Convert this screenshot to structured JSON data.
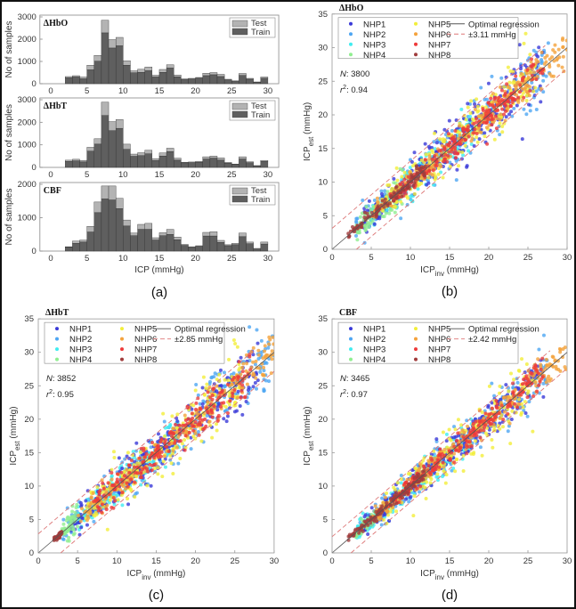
{
  "chart_data": [
    {
      "type": "bar",
      "panel": "(a)",
      "subtitle": "ΔHbO",
      "stacked": true,
      "bin_start": [
        2,
        3,
        4,
        5,
        6,
        7,
        8,
        9,
        10,
        11,
        12,
        13,
        14,
        15,
        16,
        17,
        18,
        19,
        20,
        21,
        22,
        23,
        24,
        25,
        26,
        27,
        28,
        29
      ],
      "series": [
        {
          "name": "Train",
          "color": "#5f5f5f",
          "values": [
            260,
            300,
            220,
            620,
            1010,
            2280,
            1600,
            1700,
            830,
            490,
            510,
            580,
            300,
            510,
            700,
            310,
            180,
            210,
            250,
            360,
            400,
            320,
            170,
            100,
            370,
            200,
            60,
            240
          ]
        },
        {
          "name": "Test",
          "color": "#b3b3b3",
          "values": [
            60,
            60,
            80,
            210,
            260,
            570,
            380,
            380,
            200,
            90,
            140,
            170,
            80,
            130,
            150,
            80,
            40,
            30,
            30,
            110,
            100,
            100,
            30,
            30,
            90,
            40,
            20,
            60
          ]
        }
      ],
      "xlabel": "",
      "ylabel": "No of samples",
      "xlim": [
        -1.5,
        31.5
      ],
      "ylim": [
        0,
        3000
      ],
      "xticks": [
        "0",
        "5",
        "10",
        "15",
        "20",
        "25",
        "30"
      ],
      "yticks": [
        "0",
        "1000",
        "2000",
        "3000"
      ],
      "legend": "top-right"
    },
    {
      "type": "bar",
      "panel": "(a)",
      "subtitle": "ΔHbT",
      "stacked": true,
      "bin_start": [
        2,
        3,
        4,
        5,
        6,
        7,
        8,
        9,
        10,
        11,
        12,
        13,
        14,
        15,
        16,
        17,
        18,
        19,
        20,
        21,
        22,
        23,
        24,
        25,
        26,
        27,
        28,
        29
      ],
      "series": [
        {
          "name": "Train",
          "color": "#5f5f5f",
          "values": [
            260,
            290,
            240,
            720,
            1030,
            2300,
            1630,
            1730,
            800,
            490,
            520,
            600,
            300,
            500,
            700,
            320,
            200,
            210,
            230,
            370,
            410,
            320,
            190,
            130,
            370,
            210,
            60,
            260
          ]
        },
        {
          "name": "Test",
          "color": "#b3b3b3",
          "values": [
            60,
            70,
            70,
            170,
            240,
            590,
            400,
            390,
            230,
            100,
            130,
            160,
            90,
            140,
            150,
            90,
            30,
            30,
            40,
            100,
            90,
            100,
            30,
            20,
            100,
            40,
            20,
            50
          ]
        }
      ],
      "xlabel": "",
      "ylabel": "No of samples",
      "xlim": [
        -1.5,
        31.5
      ],
      "ylim": [
        0,
        3000
      ],
      "xticks": [
        "0",
        "5",
        "10",
        "15",
        "20",
        "25",
        "30"
      ],
      "yticks": [
        "0",
        "1000",
        "2000",
        "3000"
      ],
      "legend": "top-right"
    },
    {
      "type": "bar",
      "panel": "(a)",
      "subtitle": "CBF",
      "stacked": true,
      "bin_start": [
        2,
        3,
        4,
        5,
        6,
        7,
        8,
        9,
        10,
        11,
        12,
        13,
        14,
        15,
        16,
        17,
        18,
        19,
        20,
        21,
        22,
        23,
        24,
        25,
        26,
        27,
        28,
        29
      ],
      "series": [
        {
          "name": "Train",
          "color": "#5f5f5f",
          "values": [
            120,
            230,
            270,
            570,
            1150,
            1560,
            1530,
            1270,
            750,
            460,
            650,
            650,
            330,
            460,
            500,
            340,
            170,
            110,
            140,
            450,
            450,
            260,
            160,
            190,
            430,
            220,
            60,
            210
          ]
        },
        {
          "name": "Test",
          "color": "#b3b3b3",
          "values": [
            10,
            70,
            60,
            170,
            320,
            390,
            420,
            310,
            180,
            80,
            150,
            180,
            70,
            90,
            150,
            80,
            30,
            20,
            20,
            110,
            130,
            60,
            30,
            40,
            110,
            50,
            20,
            60
          ]
        }
      ],
      "xlabel": "ICP (mmHg)",
      "ylabel": "No of samples",
      "xlim": [
        -1.5,
        31.5
      ],
      "ylim": [
        0,
        2000
      ],
      "xticks": [
        "0",
        "5",
        "10",
        "15",
        "20",
        "25",
        "30"
      ],
      "yticks": [
        "0",
        "1000",
        "2000"
      ],
      "legend": "top-right"
    },
    {
      "type": "scatter",
      "panel": "(b)",
      "subtitle": "ΔHbO",
      "xlabel_main": "ICP",
      "xlabel_sub": "inv",
      "xlabel_unit": " (mmHg)",
      "ylabel_main": "ICP",
      "ylabel_sub": "est",
      "ylabel_unit": " (mmHg)",
      "xlim": [
        0,
        30
      ],
      "ylim": [
        0,
        35
      ],
      "xticks": [
        "0",
        "5",
        "10",
        "15",
        "20",
        "25",
        "30"
      ],
      "yticks": [
        "0",
        "5",
        "10",
        "15",
        "20",
        "25",
        "30",
        "35"
      ],
      "N_label": "N",
      "N": "3800",
      "r2_label": "r",
      "r2": "0.94",
      "band": 3.11,
      "band_label": "±3.11 mmHg",
      "line_label": "Optimal regression",
      "legend": "top-left",
      "series_summary": [
        {
          "name": "NHP1",
          "color": "#3a3ad8",
          "x_range": [
            4,
            27
          ],
          "spread": 1.8
        },
        {
          "name": "NHP2",
          "color": "#4ea6f2",
          "x_range": [
            3,
            28
          ],
          "spread": 1.9
        },
        {
          "name": "NHP3",
          "color": "#40ecf0",
          "x_range": [
            5,
            18
          ],
          "spread": 1.5
        },
        {
          "name": "NHP4",
          "color": "#90ee90",
          "x_range": [
            3,
            9
          ],
          "spread": 1.6
        },
        {
          "name": "NHP5",
          "color": "#f2ee3a",
          "x_range": [
            6,
            26
          ],
          "spread": 1.8
        },
        {
          "name": "NHP6",
          "color": "#f4a23c",
          "x_range": [
            5,
            30
          ],
          "spread": 0.9
        },
        {
          "name": "NHP7",
          "color": "#ee3a3a",
          "x_range": [
            7,
            27
          ],
          "spread": 0.8
        },
        {
          "name": "NHP8",
          "color": "#a03c3c",
          "x_range": [
            2,
            12
          ],
          "spread": 0.6
        }
      ]
    },
    {
      "type": "scatter",
      "panel": "(c)",
      "subtitle": "ΔHbT",
      "xlabel_main": "ICP",
      "xlabel_sub": "inv",
      "xlabel_unit": " (mmHg)",
      "ylabel_main": "ICP",
      "ylabel_sub": "est",
      "ylabel_unit": " (mmHg)",
      "xlim": [
        0,
        30
      ],
      "ylim": [
        0,
        35
      ],
      "xticks": [
        "0",
        "5",
        "10",
        "15",
        "20",
        "25",
        "30"
      ],
      "yticks": [
        "0",
        "5",
        "10",
        "15",
        "20",
        "25",
        "30",
        "35"
      ],
      "N_label": "N",
      "N": "3852",
      "r2_label": "r",
      "r2": "0.95",
      "band": 2.85,
      "band_label": "±2.85 mmHg",
      "line_label": "Optimal regression",
      "legend": "top-left",
      "series_summary": [
        {
          "name": "NHP1",
          "color": "#3a3ad8",
          "x_range": [
            4,
            28
          ],
          "spread": 1.6
        },
        {
          "name": "NHP2",
          "color": "#4ea6f2",
          "x_range": [
            3,
            30
          ],
          "spread": 1.8
        },
        {
          "name": "NHP3",
          "color": "#40ecf0",
          "x_range": [
            5,
            18
          ],
          "spread": 1.6
        },
        {
          "name": "NHP4",
          "color": "#90ee90",
          "x_range": [
            3,
            5
          ],
          "spread": 1.8
        },
        {
          "name": "NHP5",
          "color": "#f2ee3a",
          "x_range": [
            6,
            26
          ],
          "spread": 1.9
        },
        {
          "name": "NHP6",
          "color": "#f4a23c",
          "x_range": [
            5,
            30
          ],
          "spread": 1.0
        },
        {
          "name": "NHP7",
          "color": "#ee3a3a",
          "x_range": [
            7,
            27
          ],
          "spread": 1.2
        },
        {
          "name": "NHP8",
          "color": "#a03c3c",
          "x_range": [
            2,
            3
          ],
          "spread": 0.4
        }
      ]
    },
    {
      "type": "scatter",
      "panel": "(d)",
      "subtitle": "CBF",
      "xlabel_main": "ICP",
      "xlabel_sub": "inv",
      "xlabel_unit": " (mmHg)",
      "ylabel_main": "ICP",
      "ylabel_sub": "est",
      "ylabel_unit": " (mmHg)",
      "xlim": [
        0,
        30
      ],
      "ylim": [
        0,
        35
      ],
      "xticks": [
        "0",
        "5",
        "10",
        "15",
        "20",
        "25",
        "30"
      ],
      "yticks": [
        "0",
        "5",
        "10",
        "15",
        "20",
        "25",
        "30",
        "35"
      ],
      "N_label": "N",
      "N": "3465",
      "r2_label": "r",
      "r2": "0.97",
      "band": 2.42,
      "band_label": "±2.42 mmHg",
      "line_label": "Optimal regression",
      "legend": "top-left",
      "series_summary": [
        {
          "name": "NHP1",
          "color": "#3a3ad8",
          "x_range": [
            4,
            27
          ],
          "spread": 1.2
        },
        {
          "name": "NHP2",
          "color": "#4ea6f2",
          "x_range": [
            3,
            28
          ],
          "spread": 1.4
        },
        {
          "name": "NHP3",
          "color": "#40ecf0",
          "x_range": [
            3,
            18
          ],
          "spread": 1.3
        },
        {
          "name": "NHP4",
          "color": "#90ee90",
          "x_range": [
            3,
            6
          ],
          "spread": 0.8
        },
        {
          "name": "NHP5",
          "color": "#f2ee3a",
          "x_range": [
            6,
            26
          ],
          "spread": 1.8
        },
        {
          "name": "NHP6",
          "color": "#f4a23c",
          "x_range": [
            5,
            30
          ],
          "spread": 0.8
        },
        {
          "name": "NHP7",
          "color": "#ee3a3a",
          "x_range": [
            7,
            27
          ],
          "spread": 0.8
        },
        {
          "name": "NHP8",
          "color": "#a03c3c",
          "x_range": [
            2,
            12
          ],
          "spread": 0.5
        }
      ]
    }
  ],
  "panel_a_label": "(a)"
}
